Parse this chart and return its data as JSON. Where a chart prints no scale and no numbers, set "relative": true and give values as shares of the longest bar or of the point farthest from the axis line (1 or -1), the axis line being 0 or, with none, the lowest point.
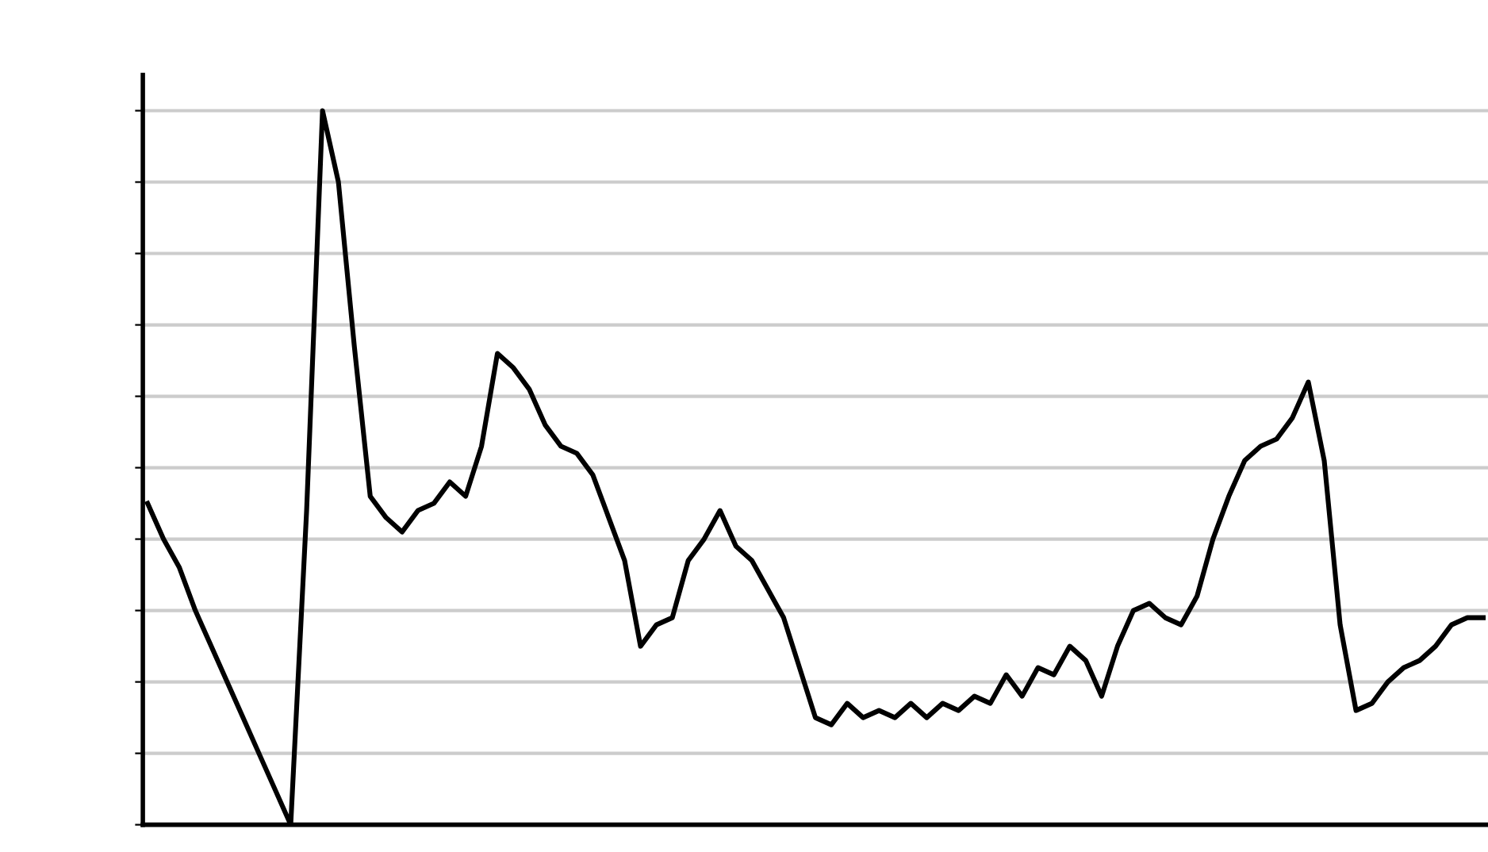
{
  "chart_data": {
    "type": "line",
    "relative": true,
    "grid": "y",
    "color": "#000000",
    "categories": [
      null,
      null,
      null,
      null,
      null,
      null,
      null,
      null,
      null,
      null,
      null,
      null,
      null,
      null,
      null,
      null,
      null,
      null,
      null,
      null,
      null,
      null,
      null,
      null,
      null,
      null,
      null,
      null,
      null,
      null,
      null,
      null,
      null,
      null,
      null,
      null,
      null,
      null,
      null,
      null,
      null,
      null,
      null,
      null,
      null,
      null,
      null,
      null,
      null,
      null,
      null,
      null,
      null,
      null,
      null,
      null,
      null,
      null,
      null,
      null,
      null,
      null,
      null,
      null,
      null,
      null,
      null,
      null,
      null,
      null,
      null,
      null,
      null,
      null,
      null,
      null,
      null,
      null,
      null,
      null,
      null,
      null,
      null,
      null,
      null
    ],
    "values": [
      0.45,
      0.4,
      0.36,
      0.3,
      0.25,
      0.2,
      0.15,
      0.1,
      0.05,
      0.0,
      0.44,
      1.0,
      0.9,
      0.67,
      0.46,
      0.43,
      0.41,
      0.44,
      0.45,
      0.48,
      0.46,
      0.53,
      0.66,
      0.64,
      0.61,
      0.56,
      0.53,
      0.52,
      0.49,
      0.43,
      0.37,
      0.25,
      0.28,
      0.29,
      0.37,
      0.4,
      0.44,
      0.39,
      0.37,
      0.33,
      0.29,
      0.22,
      0.15,
      0.14,
      0.17,
      0.15,
      0.16,
      0.15,
      0.17,
      0.15,
      0.17,
      0.16,
      0.18,
      0.17,
      0.21,
      0.18,
      0.22,
      0.21,
      0.25,
      0.23,
      0.18,
      0.25,
      0.3,
      0.31,
      0.29,
      0.28,
      0.32,
      0.4,
      0.46,
      0.51,
      0.53,
      0.54,
      0.57,
      0.62,
      0.51,
      0.28,
      0.16,
      0.17,
      0.2,
      0.22,
      0.23,
      0.25,
      0.28,
      0.29,
      0.29
    ]
  }
}
